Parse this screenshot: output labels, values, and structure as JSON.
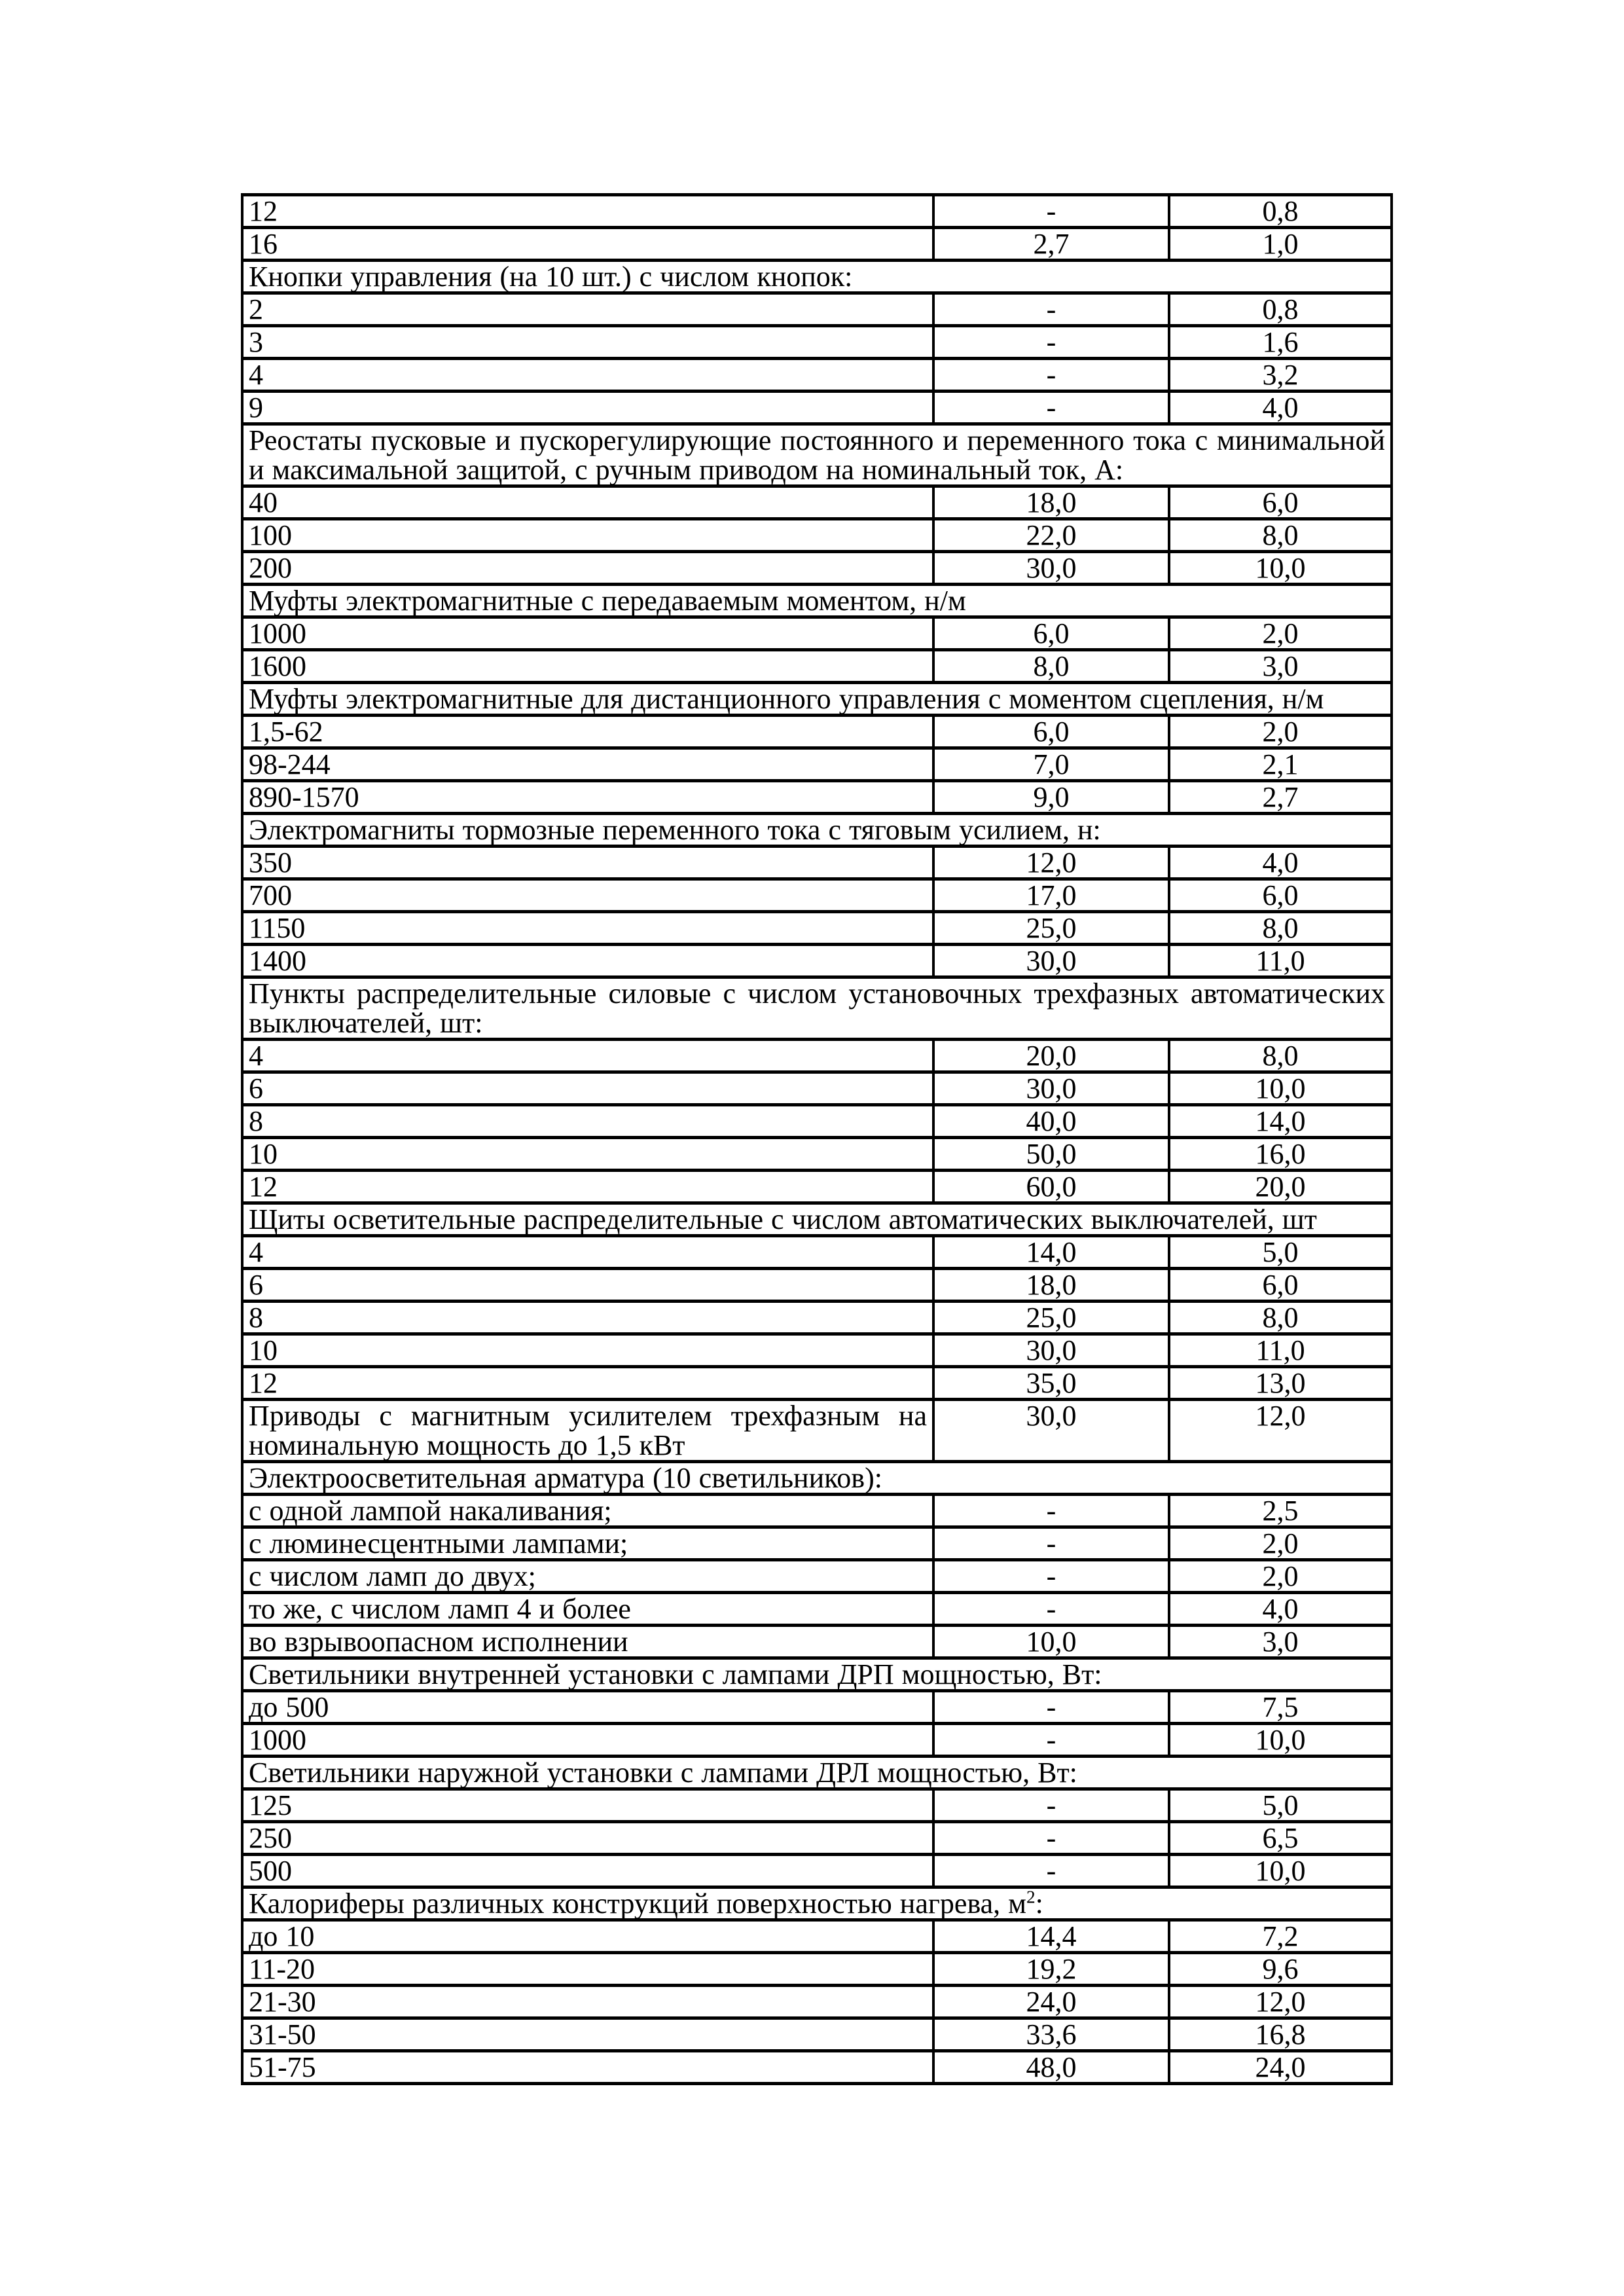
{
  "page": {
    "background_color": "#ffffff",
    "ink_color": "#000000"
  },
  "table": {
    "rows": [
      {
        "kind": "item",
        "cells": [
          "12",
          "-",
          "0,8"
        ]
      },
      {
        "kind": "item",
        "cells": [
          "16",
          "2,7",
          "1,0"
        ]
      },
      {
        "kind": "section",
        "text": "Кнопки управления (на 10 шт.) с числом кнопок:"
      },
      {
        "kind": "item",
        "cells": [
          "2",
          "-",
          "0,8"
        ]
      },
      {
        "kind": "item",
        "cells": [
          "3",
          "-",
          "1,6"
        ]
      },
      {
        "kind": "item",
        "cells": [
          "4",
          "-",
          "3,2"
        ]
      },
      {
        "kind": "item",
        "cells": [
          "9",
          "-",
          "4,0"
        ]
      },
      {
        "kind": "section",
        "text": "Реостаты пусковые и пускорегулирующие постоянного и переменного тока с минимальной и максимальной защитой, с ручным приводом на номинальный ток, А:"
      },
      {
        "kind": "item",
        "cells": [
          "40",
          "18,0",
          "6,0"
        ]
      },
      {
        "kind": "item",
        "cells": [
          "100",
          "22,0",
          "8,0"
        ]
      },
      {
        "kind": "item",
        "cells": [
          "200",
          "30,0",
          "10,0"
        ]
      },
      {
        "kind": "section",
        "text": "Муфты электромагнитные с передаваемым моментом, н/м"
      },
      {
        "kind": "item",
        "cells": [
          "1000",
          "6,0",
          "2,0"
        ]
      },
      {
        "kind": "item",
        "cells": [
          "1600",
          "8,0",
          "3,0"
        ]
      },
      {
        "kind": "section",
        "text": "Муфты электромагнитные для дистанционного управления с моментом сцепления, н/м"
      },
      {
        "kind": "item",
        "cells": [
          "1,5-62",
          "6,0",
          "2,0"
        ]
      },
      {
        "kind": "item",
        "cells": [
          "98-244",
          "7,0",
          "2,1"
        ]
      },
      {
        "kind": "item",
        "cells": [
          "890-1570",
          "9,0",
          "2,7"
        ]
      },
      {
        "kind": "section",
        "text": "Электромагниты тормозные переменного тока с тяговым усилием, н:"
      },
      {
        "kind": "item",
        "cells": [
          "350",
          "12,0",
          "4,0"
        ]
      },
      {
        "kind": "item",
        "cells": [
          "700",
          "17,0",
          "6,0"
        ]
      },
      {
        "kind": "item",
        "cells": [
          "1150",
          "25,0",
          "8,0"
        ]
      },
      {
        "kind": "item",
        "cells": [
          "1400",
          "30,0",
          "11,0"
        ]
      },
      {
        "kind": "section",
        "text": "Пункты распределительные силовые с числом установочных трехфазных автоматических выключателей, шт:"
      },
      {
        "kind": "item",
        "cells": [
          "4",
          "20,0",
          "8,0"
        ]
      },
      {
        "kind": "item",
        "cells": [
          "6",
          "30,0",
          "10,0"
        ]
      },
      {
        "kind": "item",
        "cells": [
          "8",
          "40,0",
          "14,0"
        ]
      },
      {
        "kind": "item",
        "cells": [
          "10",
          "50,0",
          "16,0"
        ]
      },
      {
        "kind": "item",
        "cells": [
          "12",
          "60,0",
          "20,0"
        ]
      },
      {
        "kind": "section",
        "text": "Щиты осветительные распределительные с числом автоматических выключателей, шт"
      },
      {
        "kind": "item",
        "cells": [
          "4",
          "14,0",
          "5,0"
        ]
      },
      {
        "kind": "item",
        "cells": [
          "6",
          "18,0",
          "6,0"
        ]
      },
      {
        "kind": "item",
        "cells": [
          "8",
          "25,0",
          "8,0"
        ]
      },
      {
        "kind": "item",
        "cells": [
          "10",
          "30,0",
          "11,0"
        ]
      },
      {
        "kind": "item",
        "cells": [
          "12",
          "35,0",
          "13,0"
        ]
      },
      {
        "kind": "item",
        "wrap": true,
        "cells": [
          "Приводы с магнитным усилителем трехфазным на номинальную мощность до 1,5 кВт",
          "30,0",
          "12,0"
        ]
      },
      {
        "kind": "section",
        "text": "Электроосветительная арматура (10 светильников):"
      },
      {
        "kind": "item",
        "cells": [
          "с одной лампой накаливания;",
          "-",
          "2,5"
        ]
      },
      {
        "kind": "item",
        "cells": [
          "с люминесцентными лампами;",
          "-",
          "2,0"
        ]
      },
      {
        "kind": "item",
        "cells": [
          "с числом ламп до двух;",
          "-",
          "2,0"
        ]
      },
      {
        "kind": "item",
        "cells": [
          "то же, с числом ламп 4 и более",
          "-",
          "4,0"
        ]
      },
      {
        "kind": "item",
        "cells": [
          "во взрывоопасном исполнении",
          "10,0",
          "3,0"
        ]
      },
      {
        "kind": "section",
        "text": "Светильники внутренней установки с лампами ДРП мощностью, Вт:"
      },
      {
        "kind": "item",
        "cells": [
          "до 500",
          "-",
          "7,5"
        ]
      },
      {
        "kind": "item",
        "cells": [
          "1000",
          "-",
          "10,0"
        ]
      },
      {
        "kind": "section",
        "text": "Светильники наружной установки с лампами ДРЛ мощностью, Вт:"
      },
      {
        "kind": "item",
        "cells": [
          "125",
          "-",
          "5,0"
        ]
      },
      {
        "kind": "item",
        "cells": [
          "250",
          "-",
          "6,5"
        ]
      },
      {
        "kind": "item",
        "cells": [
          "500",
          "-",
          "10,0"
        ]
      },
      {
        "kind": "section",
        "text": "Калориферы различных конструкций поверхностью нагрева, м",
        "sup": "2",
        "suffix": ":"
      },
      {
        "kind": "item",
        "cells": [
          "до 10",
          "14,4",
          "7,2"
        ]
      },
      {
        "kind": "item",
        "cells": [
          "11-20",
          "19,2",
          "9,6"
        ]
      },
      {
        "kind": "item",
        "cells": [
          "21-30",
          "24,0",
          "12,0"
        ]
      },
      {
        "kind": "item",
        "cells": [
          "31-50",
          "33,6",
          "16,8"
        ]
      },
      {
        "kind": "item",
        "cells": [
          "51-75",
          "48,0",
          "24,0"
        ]
      }
    ]
  }
}
